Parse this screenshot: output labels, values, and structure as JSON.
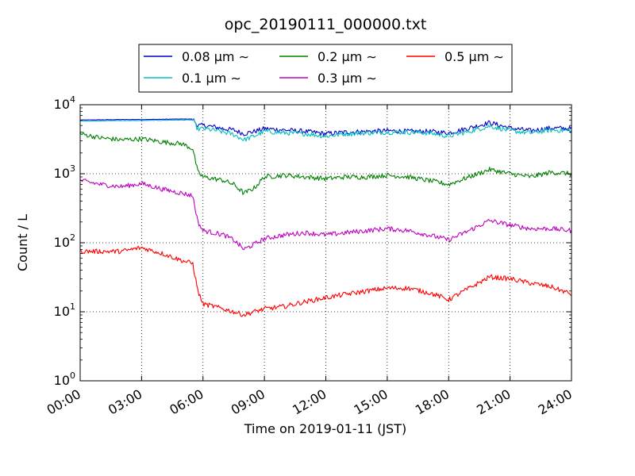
{
  "chart_data": {
    "type": "line",
    "title": "opc_20190111_000000.txt",
    "xlabel": "Time on 2019-01-11 (JST)",
    "ylabel": "Count / L",
    "yscale": "log",
    "ylim": [
      1,
      10000
    ],
    "xlim": [
      "00:00",
      "24:00"
    ],
    "grid": true,
    "legend_position": "top-center",
    "x_ticks": [
      "00:00",
      "03:00",
      "06:00",
      "09:00",
      "12:00",
      "15:00",
      "18:00",
      "21:00",
      "24:00"
    ],
    "y_ticks": [
      {
        "value": 1,
        "base": "10",
        "exp": "0"
      },
      {
        "value": 10,
        "base": "10",
        "exp": "1"
      },
      {
        "value": 100,
        "base": "10",
        "exp": "2"
      },
      {
        "value": 1000,
        "base": "10",
        "exp": "3"
      },
      {
        "value": 10000,
        "base": "10",
        "exp": "4"
      }
    ],
    "x": [
      "00:00",
      "01:00",
      "02:00",
      "03:00",
      "04:00",
      "05:00",
      "05:30",
      "05:45",
      "06:00",
      "06:30",
      "07:00",
      "07:30",
      "08:00",
      "08:30",
      "09:00",
      "10:00",
      "11:00",
      "12:00",
      "13:00",
      "14:00",
      "15:00",
      "16:00",
      "17:00",
      "17:30",
      "18:00",
      "19:00",
      "20:00",
      "21:00",
      "22:00",
      "23:00",
      "24:00"
    ],
    "series": [
      {
        "name": "0.08 μm ∼",
        "color": "#0000cc",
        "values": [
          6000,
          6050,
          6100,
          6100,
          6150,
          6200,
          6200,
          5000,
          5000,
          4800,
          4500,
          4300,
          3800,
          4100,
          4500,
          4300,
          4100,
          3800,
          4000,
          4100,
          4200,
          4100,
          4100,
          4000,
          3900,
          4600,
          5500,
          4600,
          4200,
          4600,
          4500
        ]
      },
      {
        "name": "0.1 μm ∼",
        "color": "#00bfbf",
        "values": [
          5800,
          5850,
          5900,
          5900,
          5950,
          6000,
          6000,
          4400,
          4500,
          4300,
          4000,
          3700,
          3100,
          3500,
          4100,
          3900,
          3800,
          3500,
          3800,
          3900,
          4000,
          4000,
          3900,
          3700,
          3500,
          4100,
          4900,
          4200,
          3900,
          4300,
          4200
        ]
      },
      {
        "name": "0.2 μm ∼",
        "color": "#008000",
        "values": [
          3800,
          3300,
          3100,
          3200,
          2900,
          2700,
          2300,
          1050,
          900,
          850,
          800,
          700,
          520,
          620,
          900,
          950,
          900,
          850,
          900,
          900,
          950,
          900,
          800,
          750,
          700,
          900,
          1150,
          1000,
          900,
          1050,
          1000
        ]
      },
      {
        "name": "0.3 μm ∼",
        "color": "#bf00bf",
        "values": [
          800,
          700,
          650,
          720,
          600,
          520,
          480,
          200,
          150,
          140,
          130,
          110,
          80,
          95,
          115,
          130,
          140,
          130,
          140,
          150,
          160,
          150,
          130,
          120,
          110,
          150,
          210,
          180,
          160,
          160,
          150
        ]
      },
      {
        "name": "0.5 μm ∼",
        "color": "#ff0000",
        "values": [
          75,
          75,
          75,
          85,
          70,
          55,
          50,
          20,
          13,
          12,
          11,
          10,
          9,
          10,
          11,
          12,
          14,
          16,
          18,
          20,
          22,
          22,
          19,
          17,
          15,
          22,
          32,
          30,
          26,
          23,
          18
        ]
      }
    ]
  }
}
